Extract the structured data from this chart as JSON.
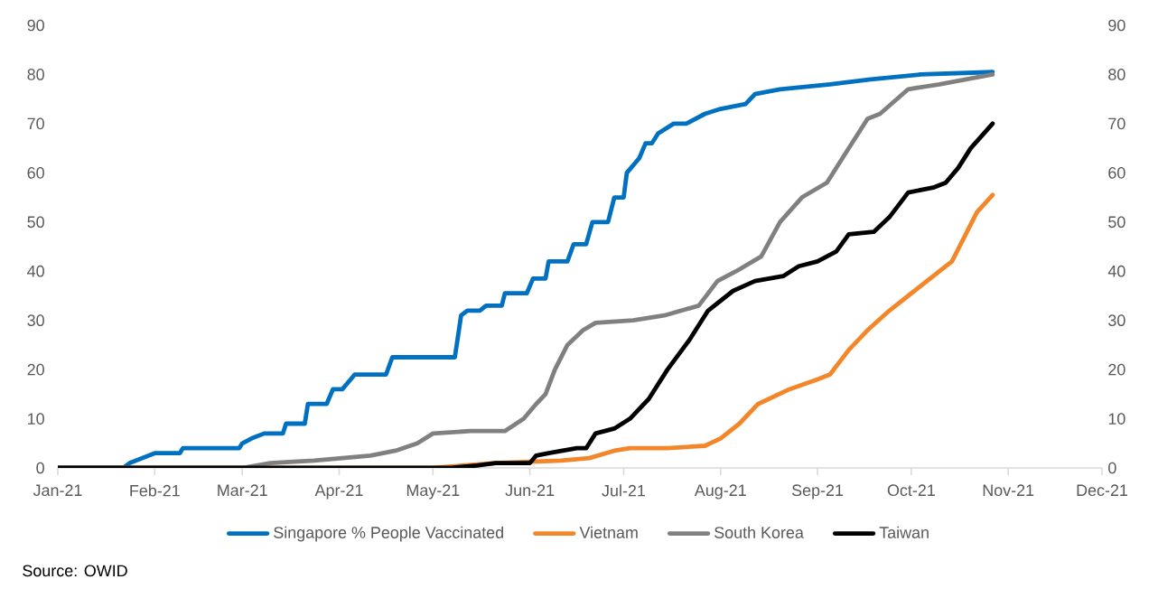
{
  "chart_data": {
    "type": "line",
    "xlim": [
      "2021-01-01",
      "2021-12-01"
    ],
    "xticks": [
      {
        "value": "2021-01-01",
        "label": "Jan-21"
      },
      {
        "value": "2021-02-01",
        "label": "Feb-21"
      },
      {
        "value": "2021-03-01",
        "label": "Mar-21"
      },
      {
        "value": "2021-04-01",
        "label": "Apr-21"
      },
      {
        "value": "2021-05-01",
        "label": "May-21"
      },
      {
        "value": "2021-06-01",
        "label": "Jun-21"
      },
      {
        "value": "2021-07-01",
        "label": "Jul-21"
      },
      {
        "value": "2021-08-01",
        "label": "Aug-21"
      },
      {
        "value": "2021-09-01",
        "label": "Sep-21"
      },
      {
        "value": "2021-10-01",
        "label": "Oct-21"
      },
      {
        "value": "2021-11-01",
        "label": "Nov-21"
      },
      {
        "value": "2021-12-01",
        "label": "Dec-21"
      }
    ],
    "ylim": [
      0,
      90
    ],
    "yticks": [
      0,
      10,
      20,
      30,
      40,
      50,
      60,
      70,
      80,
      90
    ],
    "y2lim": [
      0,
      90
    ],
    "y2ticks": [
      0,
      10,
      20,
      30,
      40,
      50,
      60,
      70,
      80,
      90
    ],
    "legend": "bottom",
    "annotations": [
      "Source: OWID"
    ],
    "series": [
      {
        "name": "Singapore % People Vaccinated",
        "color": "#0070c0",
        "x": [
          "2021-01-01",
          "2021-01-22",
          "2021-01-24",
          "2021-01-28",
          "2021-02-01",
          "2021-02-09",
          "2021-02-10",
          "2021-02-28",
          "2021-03-01",
          "2021-03-04",
          "2021-03-08",
          "2021-03-14",
          "2021-03-15",
          "2021-03-21",
          "2021-03-22",
          "2021-03-28",
          "2021-03-30",
          "2021-04-02",
          "2021-04-04",
          "2021-04-06",
          "2021-04-16",
          "2021-04-18",
          "2021-05-08",
          "2021-05-10",
          "2021-05-12",
          "2021-05-16",
          "2021-05-18",
          "2021-05-23",
          "2021-05-24",
          "2021-05-31",
          "2021-06-02",
          "2021-06-06",
          "2021-06-07",
          "2021-06-13",
          "2021-06-15",
          "2021-06-19",
          "2021-06-21",
          "2021-06-26",
          "2021-06-28",
          "2021-07-01",
          "2021-07-02",
          "2021-07-06",
          "2021-07-08",
          "2021-07-10",
          "2021-07-12",
          "2021-07-17",
          "2021-07-21",
          "2021-07-27",
          "2021-08-01",
          "2021-08-09",
          "2021-08-12",
          "2021-08-20",
          "2021-09-05",
          "2021-09-18",
          "2021-10-04",
          "2021-10-27"
        ],
        "values": [
          0,
          0,
          1,
          2,
          3,
          3,
          4,
          4,
          5,
          6,
          7,
          7,
          9,
          9,
          13,
          13,
          16,
          16,
          17.5,
          19,
          19,
          22.5,
          22.5,
          31,
          32,
          32,
          33,
          33,
          35.5,
          35.5,
          38.5,
          38.5,
          42,
          42,
          45.5,
          45.5,
          50,
          50,
          55,
          55,
          60,
          63,
          66,
          66,
          68,
          70,
          70,
          72,
          73,
          74,
          76,
          77,
          78,
          79,
          80,
          80.5
        ]
      },
      {
        "name": "Vietnam",
        "color": "#f4862a",
        "x": [
          "2021-01-01",
          "2021-05-01",
          "2021-05-21",
          "2021-06-11",
          "2021-06-20",
          "2021-06-28",
          "2021-07-03",
          "2021-07-15",
          "2021-07-27",
          "2021-08-01",
          "2021-08-07",
          "2021-08-13",
          "2021-08-23",
          "2021-09-01",
          "2021-09-05",
          "2021-09-11",
          "2021-09-17",
          "2021-09-24",
          "2021-10-02",
          "2021-10-14",
          "2021-10-22",
          "2021-10-27"
        ],
        "values": [
          0,
          0,
          1,
          1.5,
          2,
          3.5,
          4,
          4,
          4.5,
          6,
          9,
          13,
          16,
          18,
          19,
          24,
          28,
          32,
          36,
          42,
          52,
          55.5
        ]
      },
      {
        "name": "South Korea",
        "color": "#808080",
        "x": [
          "2021-01-01",
          "2021-03-01",
          "2021-03-10",
          "2021-03-24",
          "2021-04-02",
          "2021-04-11",
          "2021-04-19",
          "2021-04-26",
          "2021-05-01",
          "2021-05-13",
          "2021-05-24",
          "2021-05-30",
          "2021-06-03",
          "2021-06-06",
          "2021-06-09",
          "2021-06-13",
          "2021-06-18",
          "2021-06-22",
          "2021-07-04",
          "2021-07-14",
          "2021-07-25",
          "2021-07-31",
          "2021-08-06",
          "2021-08-14",
          "2021-08-20",
          "2021-08-27",
          "2021-09-04",
          "2021-09-10",
          "2021-09-17",
          "2021-09-21",
          "2021-09-30",
          "2021-10-10",
          "2021-10-27"
        ],
        "values": [
          0,
          0,
          1,
          1.5,
          2,
          2.5,
          3.5,
          5,
          7,
          7.5,
          7.5,
          10,
          13,
          15,
          20,
          25,
          28,
          29.5,
          30,
          31,
          33,
          38,
          40,
          43,
          50,
          55,
          58,
          64,
          71,
          72,
          77,
          78,
          80
        ]
      },
      {
        "name": "Taiwan",
        "color": "#000000",
        "x": [
          "2021-01-01",
          "2021-05-07",
          "2021-05-15",
          "2021-05-21",
          "2021-06-01",
          "2021-06-03",
          "2021-06-07",
          "2021-06-16",
          "2021-06-19",
          "2021-06-22",
          "2021-06-28",
          "2021-07-03",
          "2021-07-09",
          "2021-07-15",
          "2021-07-22",
          "2021-07-28",
          "2021-08-05",
          "2021-08-12",
          "2021-08-21",
          "2021-08-26",
          "2021-09-01",
          "2021-09-07",
          "2021-09-11",
          "2021-09-19",
          "2021-09-24",
          "2021-09-30",
          "2021-10-08",
          "2021-10-12",
          "2021-10-16",
          "2021-10-20",
          "2021-10-27"
        ],
        "values": [
          0,
          0,
          0.5,
          1,
          1,
          2.5,
          3,
          4,
          4,
          7,
          8,
          10,
          14,
          20,
          26,
          32,
          36,
          38,
          39,
          41,
          42,
          44,
          47.5,
          48,
          51,
          56,
          57,
          58,
          61,
          65,
          70
        ]
      }
    ]
  }
}
